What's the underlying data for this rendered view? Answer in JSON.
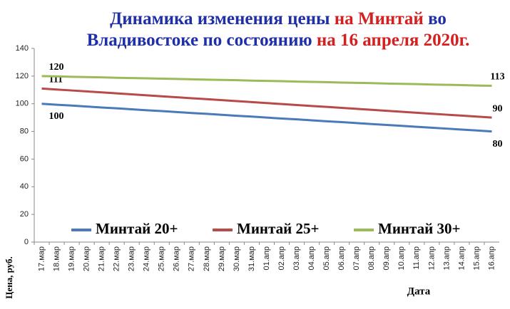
{
  "chart_data": {
    "type": "line",
    "title_lines": [
      [
        {
          "text": "Динамика изменения цены",
          "color": "#1f2fa8"
        },
        {
          "text": "на Минтай",
          "color": "#d42020"
        },
        {
          "text": "во",
          "color": "#1f2fa8"
        }
      ],
      [
        {
          "text": "Владивостоке  по состоянию",
          "color": "#1f2fa8"
        },
        {
          "text": "на 16 апреля 2020г.",
          "color": "#d42020"
        }
      ]
    ],
    "x_label": "Дата",
    "y_label": "Цена, руб.",
    "categories": [
      "17.мар",
      "18.мар",
      "19.мар",
      "20.мар",
      "21.мар",
      "22.мар",
      "23.мар",
      "24.мар",
      "25.мар",
      "26.мар",
      "27.мар",
      "28.мар",
      "29.мар",
      "30.мар",
      "31.мар",
      "01.апр",
      "02.апр",
      "03.апр",
      "04.апр",
      "05.апр",
      "06.апр",
      "07.апр",
      "08.апр",
      "09.апр",
      "10.апр",
      "11.апр",
      "12.апр",
      "13.апр",
      "14.апр",
      "15.апр",
      "16.апр"
    ],
    "series": [
      {
        "name": "Минтай 20+",
        "color": "#4a7ab8",
        "values": [
          100,
          99.3,
          98.7,
          98,
          97.3,
          96.7,
          96,
          95.3,
          94.7,
          94,
          93.3,
          92.7,
          92,
          91.3,
          90.7,
          90,
          89.3,
          88.7,
          88,
          87.3,
          86.7,
          86,
          85.3,
          84.7,
          84,
          83.3,
          82.7,
          82,
          81.3,
          80.7,
          80
        ]
      },
      {
        "name": "Минтай 25+",
        "color": "#b84a48",
        "values": [
          111,
          110.3,
          109.6,
          108.9,
          108.2,
          107.5,
          106.8,
          106.1,
          105.4,
          104.7,
          104,
          103.3,
          102.6,
          101.9,
          101.2,
          100.5,
          99.8,
          99.1,
          98.4,
          97.7,
          97,
          96.3,
          95.6,
          94.9,
          94.2,
          93.5,
          92.8,
          92.1,
          91.4,
          90.7,
          90
        ]
      },
      {
        "name": "Минтай 30+",
        "color": "#9bbb59",
        "values": [
          120,
          119.8,
          119.5,
          119.3,
          119.1,
          118.8,
          118.6,
          118.4,
          118.1,
          117.9,
          117.7,
          117.4,
          117.2,
          117,
          116.7,
          116.5,
          116.3,
          116,
          115.8,
          115.6,
          115.3,
          115.1,
          114.9,
          114.6,
          114.4,
          114.2,
          113.9,
          113.7,
          113.5,
          113.2,
          113
        ]
      }
    ],
    "data_labels": "ends",
    "ylim": [
      0,
      140
    ],
    "yticks": [
      0,
      20,
      40,
      60,
      80,
      100,
      120,
      140
    ],
    "grid": false,
    "legend": "bottom"
  }
}
